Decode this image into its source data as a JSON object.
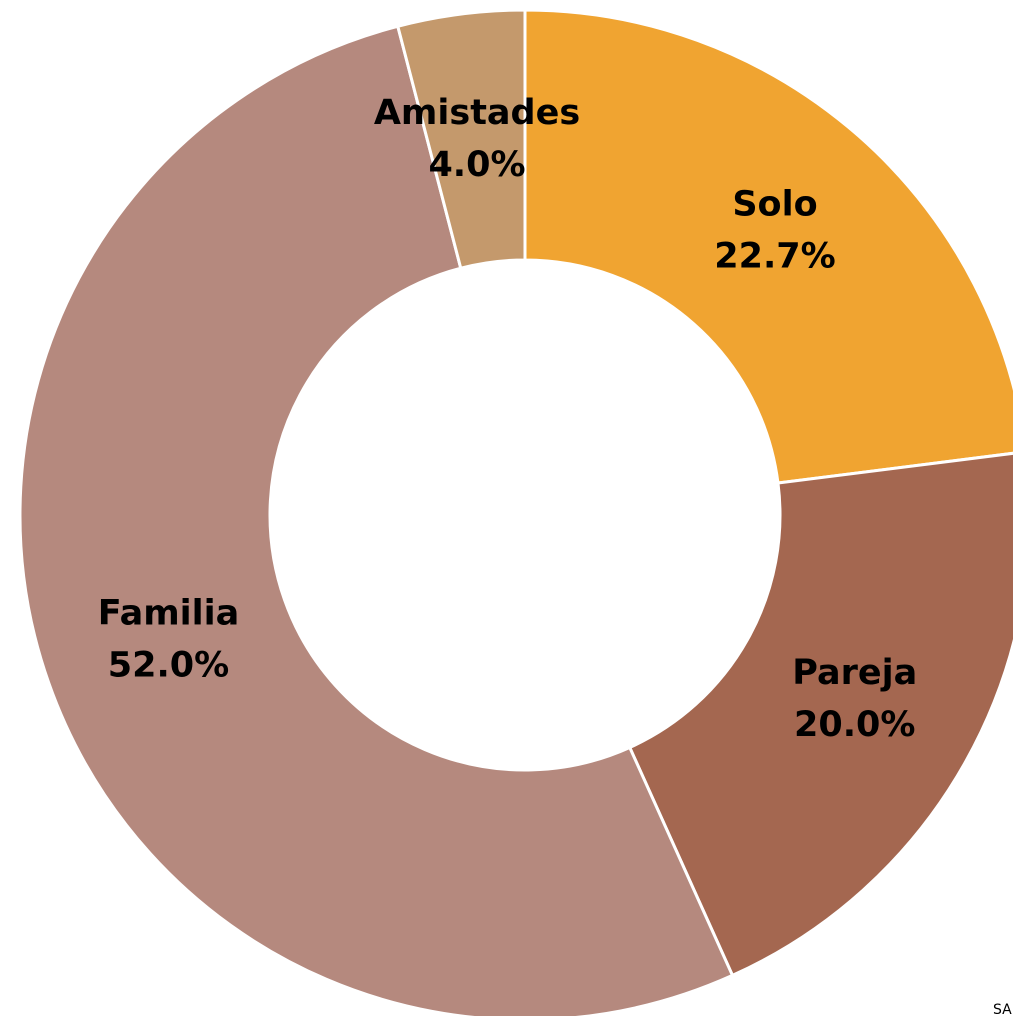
{
  "chart_data": {
    "type": "donut",
    "categories": [
      "Solo",
      "Pareja",
      "Familia",
      "Amistades"
    ],
    "values": [
      22.7,
      20.0,
      52.0,
      4.0
    ],
    "value_labels": [
      "22.7%",
      "20.0%",
      "52.0%",
      "4.0%"
    ],
    "colors": [
      "#F0A431",
      "#A46750",
      "#B5897E",
      "#C4996C"
    ],
    "note": "SA"
  }
}
